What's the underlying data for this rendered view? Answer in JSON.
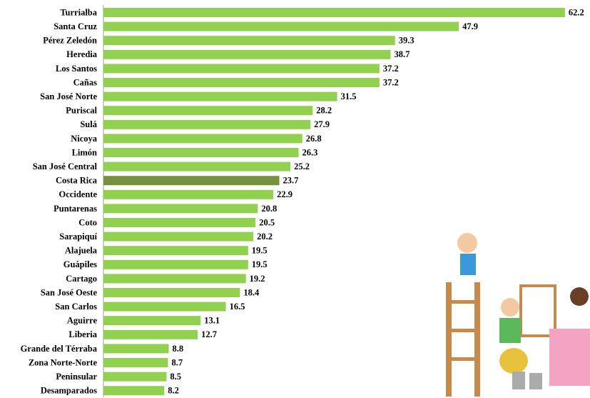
{
  "chart_data": {
    "type": "bar",
    "orientation": "horizontal",
    "categories": [
      "Turrialba",
      "Santa Cruz",
      "Pérez Zeledón",
      "Heredia",
      "Los Santos",
      "Cañas",
      "San José Norte",
      "Puriscal",
      "Sulá",
      "Nicoya",
      "Limón",
      "San José Central",
      "Costa Rica",
      "Occidente",
      "Puntarenas",
      "Coto",
      "Sarapiquí",
      "Alajuela",
      "Guápiles",
      "Cartago",
      "San José Oeste",
      "San Carlos",
      "Aguirre",
      "Liberia",
      "Grande del Térraba",
      "Zona Norte-Norte",
      "Peninsular",
      "Desamparados"
    ],
    "values": [
      62.2,
      47.9,
      39.3,
      38.7,
      37.2,
      37.2,
      31.5,
      28.2,
      27.9,
      26.8,
      26.3,
      25.2,
      23.7,
      22.9,
      20.8,
      20.5,
      20.2,
      19.5,
      19.5,
      19.2,
      18.4,
      16.5,
      13.1,
      12.7,
      8.8,
      8.7,
      8.5,
      8.2
    ],
    "colors": [
      "#92d050",
      "#92d050",
      "#92d050",
      "#92d050",
      "#92d050",
      "#92d050",
      "#92d050",
      "#92d050",
      "#92d050",
      "#92d050",
      "#92d050",
      "#92d050",
      "#76923c",
      "#92d050",
      "#92d050",
      "#92d050",
      "#92d050",
      "#92d050",
      "#92d050",
      "#92d050",
      "#92d050",
      "#92d050",
      "#92d050",
      "#92d050",
      "#92d050",
      "#92d050",
      "#92d050",
      "#92d050"
    ]
  }
}
